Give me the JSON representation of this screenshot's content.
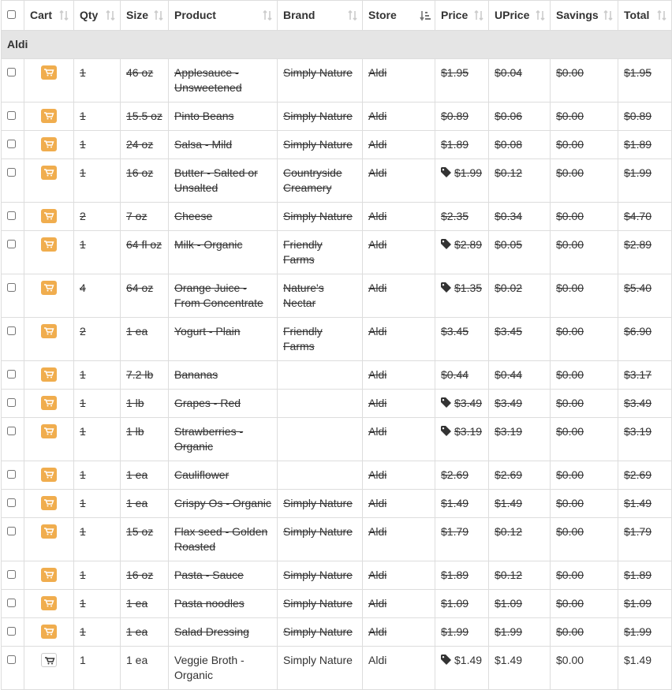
{
  "header": {
    "columns": [
      "Cart",
      "Qty",
      "Size",
      "Product",
      "Brand",
      "Store",
      "Price",
      "UPrice",
      "Savings",
      "Total"
    ],
    "sorted_column": "Store"
  },
  "group": "Aldi",
  "rows": [
    {
      "cells": [
        1,
        "46 oz",
        "Applesauce - Unsweetened",
        "Simply Nature",
        "Aldi",
        "$1.95",
        "$0.04",
        "$0.00",
        "$1.95"
      ],
      "on_sale": false,
      "purchased": true
    },
    {
      "cells": [
        1,
        "15.5 oz",
        "Pinto Beans",
        "Simply Nature",
        "Aldi",
        "$0.89",
        "$0.06",
        "$0.00",
        "$0.89"
      ],
      "on_sale": false,
      "purchased": true
    },
    {
      "cells": [
        1,
        "24 oz",
        "Salsa - Mild",
        "Simply Nature",
        "Aldi",
        "$1.89",
        "$0.08",
        "$0.00",
        "$1.89"
      ],
      "on_sale": false,
      "purchased": true
    },
    {
      "cells": [
        1,
        "16 oz",
        "Butter - Salted or Unsalted",
        "Countryside Creamery",
        "Aldi",
        "$1.99",
        "$0.12",
        "$0.00",
        "$1.99"
      ],
      "on_sale": true,
      "purchased": true
    },
    {
      "cells": [
        2,
        "7 oz",
        "Cheese",
        "Simply Nature",
        "Aldi",
        "$2.35",
        "$0.34",
        "$0.00",
        "$4.70"
      ],
      "on_sale": false,
      "purchased": true
    },
    {
      "cells": [
        1,
        "64 fl oz",
        "Milk - Organic",
        "Friendly Farms",
        "Aldi",
        "$2.89",
        "$0.05",
        "$0.00",
        "$2.89"
      ],
      "on_sale": true,
      "purchased": true
    },
    {
      "cells": [
        4,
        "64 oz",
        "Orange Juice - From Concentrate",
        "Nature's Nectar",
        "Aldi",
        "$1.35",
        "$0.02",
        "$0.00",
        "$5.40"
      ],
      "on_sale": true,
      "purchased": true
    },
    {
      "cells": [
        2,
        "1 ea",
        "Yogurt - Plain",
        "Friendly Farms",
        "Aldi",
        "$3.45",
        "$3.45",
        "$0.00",
        "$6.90"
      ],
      "on_sale": false,
      "purchased": true
    },
    {
      "cells": [
        1,
        "7.2 lb",
        "Bananas",
        null,
        "Aldi",
        "$0.44",
        "$0.44",
        "$0.00",
        "$3.17"
      ],
      "on_sale": false,
      "purchased": true
    },
    {
      "cells": [
        1,
        "1 lb",
        "Grapes - Red",
        null,
        "Aldi",
        "$3.49",
        "$3.49",
        "$0.00",
        "$3.49"
      ],
      "on_sale": true,
      "purchased": true
    },
    {
      "cells": [
        1,
        "1 lb",
        "Strawberries - Organic",
        null,
        "Aldi",
        "$3.19",
        "$3.19",
        "$0.00",
        "$3.19"
      ],
      "on_sale": true,
      "purchased": true
    },
    {
      "cells": [
        1,
        "1 ea",
        "Cauliflower",
        null,
        "Aldi",
        "$2.69",
        "$2.69",
        "$0.00",
        "$2.69"
      ],
      "on_sale": false,
      "purchased": true
    },
    {
      "cells": [
        1,
        "1 ea",
        "Crispy Os - Organic",
        "Simply Nature",
        "Aldi",
        "$1.49",
        "$1.49",
        "$0.00",
        "$1.49"
      ],
      "on_sale": false,
      "purchased": true
    },
    {
      "cells": [
        1,
        "15 oz",
        "Flax seed - Golden Roasted",
        "Simply Nature",
        "Aldi",
        "$1.79",
        "$0.12",
        "$0.00",
        "$1.79"
      ],
      "on_sale": false,
      "purchased": true
    },
    {
      "cells": [
        1,
        "16 oz",
        "Pasta - Sauce",
        "Simply Nature",
        "Aldi",
        "$1.89",
        "$0.12",
        "$0.00",
        "$1.89"
      ],
      "on_sale": false,
      "purchased": true
    },
    {
      "cells": [
        1,
        "1 ea",
        "Pasta noodles",
        "Simply Nature",
        "Aldi",
        "$1.09",
        "$1.09",
        "$0.00",
        "$1.09"
      ],
      "on_sale": false,
      "purchased": true
    },
    {
      "cells": [
        1,
        "1 ea",
        "Salad Dressing",
        "Simply Nature",
        "Aldi",
        "$1.99",
        "$1.99",
        "$0.00",
        "$1.99"
      ],
      "on_sale": false,
      "purchased": true
    },
    {
      "cells": [
        1,
        "1 ea",
        "Veggie Broth - Organic",
        "Simply Nature",
        "Aldi",
        "$1.49",
        "$1.49",
        "$0.00",
        "$1.49"
      ],
      "on_sale": true,
      "purchased": false
    }
  ]
}
